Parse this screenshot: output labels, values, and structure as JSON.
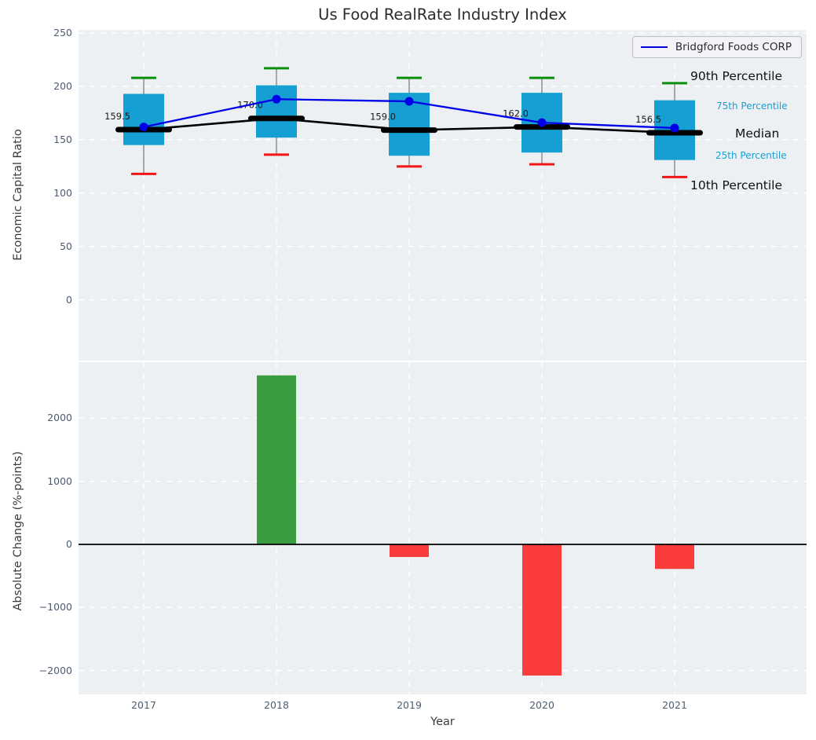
{
  "title": "Us Food RealRate Industry Index",
  "legend": {
    "label": "Bridgford Foods CORP"
  },
  "right_labels": {
    "p90": "90th Percentile",
    "p75": "75th Percentile",
    "median": "Median",
    "p25": "25th Percentile",
    "p10": "10th Percentile"
  },
  "colors": {
    "axes_bg": "#ecf0f2",
    "grid": "#ffffff",
    "box_fill": "#169fd2",
    "whisker_line": "#7f7f7f",
    "cap_high": "#0a8f0a",
    "cap_low": "#f21616",
    "median_line": "#000000",
    "company_line": "#0000e8",
    "bar_positive": "#3a9d40",
    "bar_negative": "#fa3b3b",
    "zero_line": "#000000",
    "tick_label": "#4c5d73",
    "annotation_cyan": "#179fd5",
    "annotation_black": "#111111"
  },
  "chart_data": [
    {
      "type": "boxplot_with_line",
      "title": "Us Food RealRate Industry Index",
      "ylabel": "Economic Capital Ratio",
      "categories": [
        "2017",
        "2018",
        "2019",
        "2020",
        "2021"
      ],
      "yticks": [
        250,
        200,
        150,
        100,
        50,
        0
      ],
      "ylim": [
        -57,
        253
      ],
      "grid": true,
      "legend_position": "upper right",
      "boxes": [
        {
          "year": "2017",
          "p10": 118,
          "p25": 145,
          "median": 159.5,
          "p75": 193,
          "p90": 208,
          "label": "159.5"
        },
        {
          "year": "2018",
          "p10": 136,
          "p25": 152,
          "median": 170.0,
          "p75": 201,
          "p90": 217,
          "label": "170.0"
        },
        {
          "year": "2019",
          "p10": 125,
          "p25": 135,
          "median": 159.0,
          "p75": 194,
          "p90": 208,
          "label": "159.0"
        },
        {
          "year": "2020",
          "p10": 127,
          "p25": 138,
          "median": 162.0,
          "p75": 194,
          "p90": 208,
          "label": "162.0"
        },
        {
          "year": "2021",
          "p10": 115,
          "p25": 131,
          "median": 156.5,
          "p75": 187,
          "p90": 203,
          "label": "156.5"
        }
      ],
      "series": [
        {
          "name": "Bridgford Foods CORP",
          "type": "line",
          "values": [
            162,
            188,
            186,
            166,
            161
          ]
        }
      ]
    },
    {
      "type": "bar",
      "ylabel": "Absolute Change (%-points)",
      "xlabel": "Year",
      "categories": [
        "2017",
        "2018",
        "2019",
        "2020",
        "2021"
      ],
      "values": [
        null,
        2680,
        -200,
        -2080,
        -390
      ],
      "yticks": [
        2000,
        1000,
        0,
        -1000,
        -2000
      ],
      "ylim": [
        -2380,
        2890
      ],
      "grid": true
    }
  ]
}
